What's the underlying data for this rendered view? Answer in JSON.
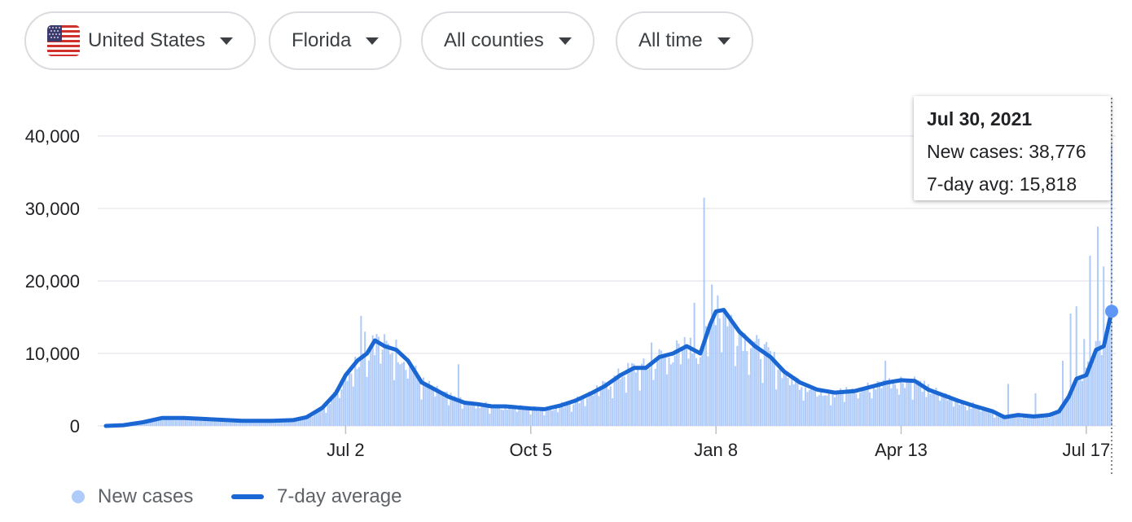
{
  "filters": {
    "country": {
      "label": "United States",
      "flag_icon": "us-flag-icon"
    },
    "state": {
      "label": "Florida"
    },
    "county": {
      "label": "All counties"
    },
    "range": {
      "label": "All time"
    }
  },
  "tooltip": {
    "date": "Jul 30, 2021",
    "new_cases_text": "New cases: 38,776",
    "avg_text": "7-day avg: 15,818"
  },
  "legend": {
    "new_cases": "New cases",
    "avg": "7-day average"
  },
  "colors": {
    "bars": "#aecbfa",
    "line": "#1a66d2",
    "point": "#5e97f6",
    "grid": "#e8eaed",
    "axis_text": "#202124"
  },
  "chart_data": {
    "type": "bar",
    "ylim": [
      0,
      40000
    ],
    "y_ticks": [
      {
        "value": 0,
        "label": "0"
      },
      {
        "value": 10000,
        "label": "10,000"
      },
      {
        "value": 20000,
        "label": "20,000"
      },
      {
        "value": 30000,
        "label": "30,000"
      },
      {
        "value": 40000,
        "label": "40,000"
      }
    ],
    "x_range": [
      "2020-03-01",
      "2021-07-30"
    ],
    "x_ticks": [
      {
        "date": "2020-07-02",
        "label": "Jul 2"
      },
      {
        "date": "2020-10-05",
        "label": "Oct 5"
      },
      {
        "date": "2021-01-08",
        "label": "Jan 8"
      },
      {
        "date": "2021-04-13",
        "label": "Apr 13"
      },
      {
        "date": "2021-07-17",
        "label": "Jul 17"
      }
    ],
    "series": [
      {
        "name": "7-day average",
        "kind": "line",
        "points": [
          [
            "2020-03-01",
            0
          ],
          [
            "2020-03-10",
            100
          ],
          [
            "2020-03-20",
            500
          ],
          [
            "2020-03-30",
            1100
          ],
          [
            "2020-04-10",
            1100
          ],
          [
            "2020-04-25",
            900
          ],
          [
            "2020-05-10",
            700
          ],
          [
            "2020-05-25",
            700
          ],
          [
            "2020-06-05",
            800
          ],
          [
            "2020-06-12",
            1200
          ],
          [
            "2020-06-20",
            2500
          ],
          [
            "2020-06-27",
            4500
          ],
          [
            "2020-07-02",
            7000
          ],
          [
            "2020-07-08",
            9000
          ],
          [
            "2020-07-13",
            10000
          ],
          [
            "2020-07-17",
            11800
          ],
          [
            "2020-07-22",
            11000
          ],
          [
            "2020-07-28",
            10500
          ],
          [
            "2020-08-03",
            9000
          ],
          [
            "2020-08-10",
            6000
          ],
          [
            "2020-08-17",
            5000
          ],
          [
            "2020-08-24",
            4000
          ],
          [
            "2020-09-01",
            3200
          ],
          [
            "2020-09-08",
            3000
          ],
          [
            "2020-09-15",
            2700
          ],
          [
            "2020-09-22",
            2700
          ],
          [
            "2020-10-05",
            2400
          ],
          [
            "2020-10-12",
            2300
          ],
          [
            "2020-10-20",
            2800
          ],
          [
            "2020-10-28",
            3500
          ],
          [
            "2020-11-05",
            4500
          ],
          [
            "2020-11-12",
            5500
          ],
          [
            "2020-11-20",
            7000
          ],
          [
            "2020-11-27",
            8000
          ],
          [
            "2020-12-03",
            8000
          ],
          [
            "2020-12-10",
            9500
          ],
          [
            "2020-12-17",
            10000
          ],
          [
            "2020-12-24",
            11000
          ],
          [
            "2020-12-31",
            10000
          ],
          [
            "2021-01-05",
            14000
          ],
          [
            "2021-01-08",
            15800
          ],
          [
            "2021-01-12",
            16000
          ],
          [
            "2021-01-20",
            13000
          ],
          [
            "2021-01-28",
            11000
          ],
          [
            "2021-02-05",
            9500
          ],
          [
            "2021-02-12",
            7500
          ],
          [
            "2021-02-20",
            6000
          ],
          [
            "2021-03-01",
            5000
          ],
          [
            "2021-03-10",
            4600
          ],
          [
            "2021-03-20",
            4800
          ],
          [
            "2021-03-30",
            5500
          ],
          [
            "2021-04-06",
            6000
          ],
          [
            "2021-04-13",
            6300
          ],
          [
            "2021-04-20",
            6200
          ],
          [
            "2021-04-27",
            5000
          ],
          [
            "2021-05-05",
            4200
          ],
          [
            "2021-05-12",
            3500
          ],
          [
            "2021-05-20",
            2800
          ],
          [
            "2021-05-30",
            2000
          ],
          [
            "2021-06-05",
            1200
          ],
          [
            "2021-06-12",
            1500
          ],
          [
            "2021-06-20",
            1300
          ],
          [
            "2021-06-28",
            1500
          ],
          [
            "2021-07-03",
            2000
          ],
          [
            "2021-07-08",
            4000
          ],
          [
            "2021-07-12",
            6500
          ],
          [
            "2021-07-17",
            7000
          ],
          [
            "2021-07-22",
            10500
          ],
          [
            "2021-07-26",
            11000
          ],
          [
            "2021-07-30",
            15818
          ]
        ]
      },
      {
        "name": "New cases",
        "kind": "bars",
        "spikes": [
          [
            "2020-07-10",
            15200
          ],
          [
            "2020-07-12",
            13000
          ],
          [
            "2020-07-16",
            12500
          ],
          [
            "2020-07-19",
            12300
          ],
          [
            "2020-08-29",
            8500
          ],
          [
            "2020-12-06",
            11500
          ],
          [
            "2020-12-28",
            17000
          ],
          [
            "2021-01-02",
            31500
          ],
          [
            "2021-01-06",
            19500
          ],
          [
            "2021-01-09",
            18000
          ],
          [
            "2021-04-05",
            9000
          ],
          [
            "2021-06-07",
            5800
          ],
          [
            "2021-06-21",
            4500
          ],
          [
            "2021-07-05",
            9000
          ],
          [
            "2021-07-09",
            15500
          ],
          [
            "2021-07-12",
            16500
          ],
          [
            "2021-07-16",
            12000
          ],
          [
            "2021-07-19",
            23500
          ],
          [
            "2021-07-23",
            27500
          ],
          [
            "2021-07-26",
            22000
          ],
          [
            "2021-07-30",
            38776
          ]
        ]
      }
    ],
    "highlight": {
      "date": "2021-07-30",
      "new_cases": 38776,
      "avg": 15818
    }
  }
}
